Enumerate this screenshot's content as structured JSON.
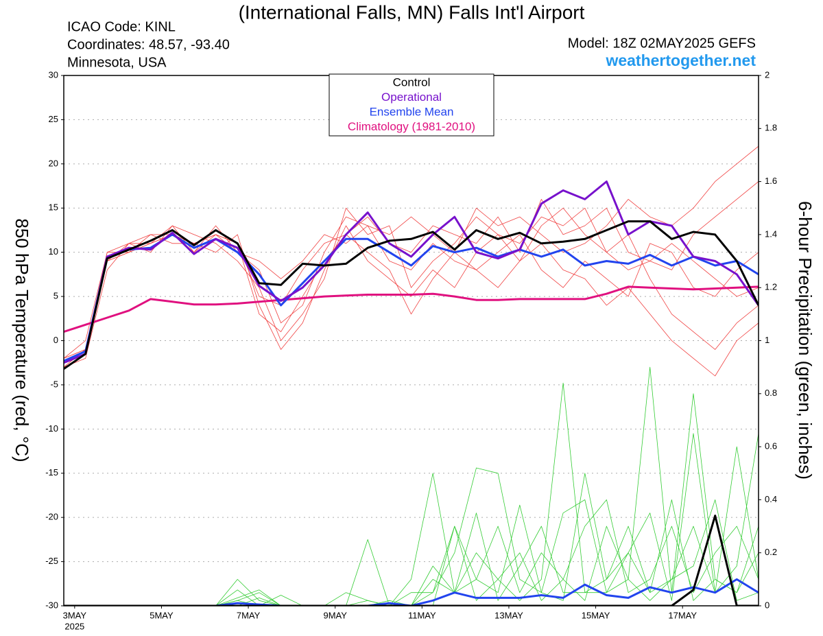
{
  "chart_data": {
    "type": "line",
    "title": "(International Falls, MN) Falls Int'l Airport",
    "info": [
      "ICAO Code: KINL",
      "Coordinates: 48.57, -93.40",
      "Minnesota, USA"
    ],
    "model": "Model: 18Z 02MAY2025 GEFS",
    "source": "weathertogether.net",
    "y_label": "850 hPa Temperature (red, °C)",
    "y2_label": "6-hour Precipitation (green, inches)",
    "x_sublabel": "2025",
    "x": [
      2.75,
      3.25,
      3.75,
      4.25,
      4.75,
      5.25,
      5.75,
      6.25,
      6.75,
      7.25,
      7.75,
      8.25,
      8.75,
      9.25,
      9.75,
      10.25,
      10.75,
      11.25,
      11.75,
      12.25,
      12.75,
      13.25,
      13.75,
      14.25,
      14.75,
      15.25,
      15.75,
      16.25,
      16.75,
      17.25,
      17.75,
      18.25,
      18.75
    ],
    "xlim": [
      2.75,
      18.75
    ],
    "xticks": [
      {
        "value": 3,
        "label": "3MAY"
      },
      {
        "value": 5,
        "label": "5MAY"
      },
      {
        "value": 7,
        "label": "7MAY"
      },
      {
        "value": 9,
        "label": "9MAY"
      },
      {
        "value": 11,
        "label": "11MAY"
      },
      {
        "value": 13,
        "label": "13MAY"
      },
      {
        "value": 15,
        "label": "15MAY"
      },
      {
        "value": 17,
        "label": "17MAY"
      }
    ],
    "ylim": [
      -30,
      30
    ],
    "yticks": [
      -30,
      -25,
      -20,
      -15,
      -10,
      -5,
      0,
      5,
      10,
      15,
      20,
      25,
      30
    ],
    "y2lim": [
      0,
      2
    ],
    "y2ticks": [
      0,
      0.2,
      0.4,
      0.6,
      0.8,
      1,
      1.2,
      1.4,
      1.6,
      1.8,
      2
    ],
    "grid": true,
    "series": [
      {
        "color": "#f04040",
        "values": [
          -3,
          -1,
          9,
          10,
          11,
          13,
          10,
          12,
          11,
          3,
          1,
          5,
          9,
          12,
          14,
          11,
          10,
          13,
          12,
          11,
          14,
          10,
          16,
          12,
          13,
          15,
          10,
          9,
          8,
          12,
          14,
          16,
          18
        ]
      },
      {
        "color": "#f04040",
        "values": [
          -2,
          0,
          10,
          11,
          12,
          12,
          11,
          12,
          10,
          8,
          2,
          4,
          10,
          14,
          13,
          9,
          8,
          11,
          9,
          8,
          10,
          12,
          8,
          6,
          9,
          7,
          5,
          11,
          10,
          6,
          5,
          8,
          10
        ]
      },
      {
        "color": "#f04040",
        "values": [
          -3,
          -2,
          8,
          11,
          10,
          13,
          12,
          11,
          9,
          6,
          0,
          3,
          7,
          15,
          12,
          13,
          6,
          9,
          11,
          14,
          12,
          9,
          13,
          15,
          12,
          10,
          12,
          7,
          3,
          1,
          -1,
          2,
          4
        ]
      },
      {
        "color": "#f04040",
        "values": [
          -2,
          -1,
          10,
          10,
          11,
          12,
          11,
          12,
          11,
          5,
          4,
          8,
          11,
          12,
          10,
          8,
          3,
          7,
          10,
          8,
          6,
          9,
          11,
          8,
          7,
          4,
          6,
          3,
          0,
          -2,
          -4,
          0,
          2
        ]
      },
      {
        "color": "#f04040",
        "values": [
          -3,
          -1,
          9,
          11,
          11,
          12,
          10,
          13,
          10,
          9,
          7,
          9,
          12,
          11,
          13,
          12,
          14,
          12,
          10,
          15,
          13,
          14,
          12,
          10,
          11,
          13,
          16,
          14,
          13,
          15,
          18,
          20,
          22
        ]
      },
      {
        "color": "#f04040",
        "values": [
          -2,
          -1,
          9,
          10,
          12,
          11,
          11,
          10,
          12,
          4,
          -1,
          2,
          8,
          13,
          9,
          7,
          5,
          8,
          6,
          10,
          12,
          11,
          14,
          13,
          15,
          10,
          8,
          9,
          11,
          9,
          7,
          5,
          6
        ]
      },
      {
        "color": "#33cc33",
        "axis": "y2",
        "values": [
          0,
          0,
          0,
          0,
          0,
          0,
          0,
          0,
          0.1,
          0.02,
          0,
          0,
          0,
          0.05,
          0.02,
          0,
          0.1,
          0.5,
          0.05,
          0.1,
          0.3,
          0.05,
          0.2,
          0.1,
          0.02,
          0.3,
          0.1,
          0.9,
          0.05,
          0.8,
          0.1,
          0.05,
          0.3
        ]
      },
      {
        "color": "#33cc33",
        "axis": "y2",
        "values": [
          0,
          0,
          0,
          0,
          0,
          0,
          0,
          0,
          0.02,
          0.05,
          0,
          0,
          0,
          0,
          0.25,
          0,
          0,
          0.05,
          0.2,
          0.52,
          0.5,
          0.1,
          0.05,
          0.35,
          0.4,
          0.05,
          0.1,
          0.02,
          0.1,
          0.3,
          0.05,
          0.6,
          0.1
        ]
      },
      {
        "color": "#33cc33",
        "axis": "y2",
        "values": [
          0,
          0,
          0,
          0,
          0,
          0,
          0,
          0,
          0.06,
          0,
          0.04,
          0,
          0,
          0,
          0,
          0.02,
          0,
          0,
          0.3,
          0.1,
          0.05,
          0.38,
          0.05,
          0.02,
          0.5,
          0.1,
          0.3,
          0.05,
          0.4,
          0.02,
          0.1,
          0.05,
          0.2
        ]
      },
      {
        "color": "#33cc33",
        "axis": "y2",
        "values": [
          0,
          0,
          0,
          0,
          0,
          0,
          0,
          0,
          0,
          0.03,
          0,
          0,
          0,
          0,
          0.02,
          0,
          0,
          0.15,
          0.05,
          0.2,
          0.1,
          0.02,
          0.1,
          0.84,
          0.05,
          0.05,
          0.2,
          0.35,
          0.02,
          0.65,
          0.05,
          0.15,
          0.65
        ]
      },
      {
        "color": "#33cc33",
        "axis": "y2",
        "values": [
          0,
          0,
          0,
          0,
          0,
          0,
          0,
          0,
          0.03,
          0.06,
          0,
          0,
          0,
          0,
          0,
          0,
          0.05,
          0.05,
          0.3,
          0.02,
          0.1,
          0.2,
          0.02,
          0.1,
          0.3,
          0.4,
          0.05,
          0.1,
          0.3,
          0.05,
          0.2,
          0.3,
          0.1
        ]
      },
      {
        "color": "#33cc33",
        "axis": "y2",
        "values": [
          0,
          0,
          0,
          0,
          0,
          0,
          0,
          0,
          0.02,
          0,
          0,
          0,
          0,
          0,
          0,
          0,
          0,
          0.1,
          0.05,
          0.35,
          0.02,
          0.15,
          0.3,
          0.05,
          0.05,
          0.1,
          0.2,
          0.05,
          0.1,
          0.15,
          0.4,
          0.02,
          0.05
        ]
      },
      {
        "name": "Climatology (1981-2010)",
        "color": "#e0107f",
        "values": [
          1,
          1.8,
          2.6,
          3.4,
          4.7,
          4.4,
          4.1,
          4.1,
          4.2,
          4.4,
          4.6,
          4.8,
          5,
          5.1,
          5.2,
          5.2,
          5.2,
          5.3,
          5,
          4.6,
          4.6,
          4.7,
          4.7,
          4.7,
          4.7,
          5.3,
          6.1,
          6,
          5.9,
          5.8,
          5.9,
          6,
          6.1
        ]
      },
      {
        "color": "#2244ee",
        "axis": "y2",
        "values": [
          0,
          0,
          0,
          0,
          0,
          0,
          0,
          0,
          0.01,
          0.005,
          0,
          0,
          0,
          0,
          0,
          0.01,
          0,
          0.02,
          0.05,
          0.03,
          0.03,
          0.03,
          0.04,
          0.03,
          0.08,
          0.04,
          0.03,
          0.07,
          0.05,
          0.07,
          0.05,
          0.1,
          0.05
        ]
      },
      {
        "color": "#000000",
        "axis": "y2",
        "values": [
          0,
          0,
          0,
          0,
          0,
          0,
          0,
          0,
          0,
          0,
          0,
          0,
          0,
          0,
          0,
          0,
          0,
          0,
          0,
          0,
          0,
          0,
          0,
          0,
          0,
          0,
          0,
          0,
          0,
          0.06,
          0.34,
          0,
          0
        ]
      },
      {
        "name": "Ensemble Mean",
        "color": "#2244ee",
        "values": [
          -2.3,
          -1.2,
          9.5,
          10.3,
          10.5,
          12,
          10.5,
          11.5,
          10,
          7.5,
          4,
          6.5,
          9,
          11.5,
          11.5,
          10,
          8.5,
          10.7,
          10,
          10.5,
          9.5,
          10.3,
          9.5,
          10.3,
          8.5,
          9,
          8.7,
          9.7,
          8.5,
          9.5,
          8.5,
          9,
          7.5
        ]
      },
      {
        "name": "Operational",
        "color": "#7711cc",
        "values": [
          -2.5,
          -1.5,
          9.5,
          10.5,
          10.3,
          12.2,
          9.8,
          11.5,
          10.5,
          6.2,
          4.5,
          6,
          8.5,
          12,
          14.5,
          11,
          9.5,
          12,
          14,
          10,
          9.3,
          10.3,
          15.5,
          17,
          16,
          18,
          12,
          13.5,
          13,
          9.5,
          9,
          7.5,
          4
        ]
      },
      {
        "name": "Control",
        "color": "#000000",
        "values": [
          -3.2,
          -1.5,
          9.3,
          10.3,
          11.3,
          12.5,
          10.8,
          12.5,
          11,
          6.5,
          6.3,
          8.7,
          8.5,
          8.7,
          10.5,
          11.3,
          11.5,
          12.3,
          10.3,
          12.5,
          11.5,
          12.2,
          11,
          11.2,
          11.5,
          12.5,
          13.5,
          13.5,
          11.5,
          12.3,
          12,
          9,
          4
        ]
      }
    ]
  }
}
